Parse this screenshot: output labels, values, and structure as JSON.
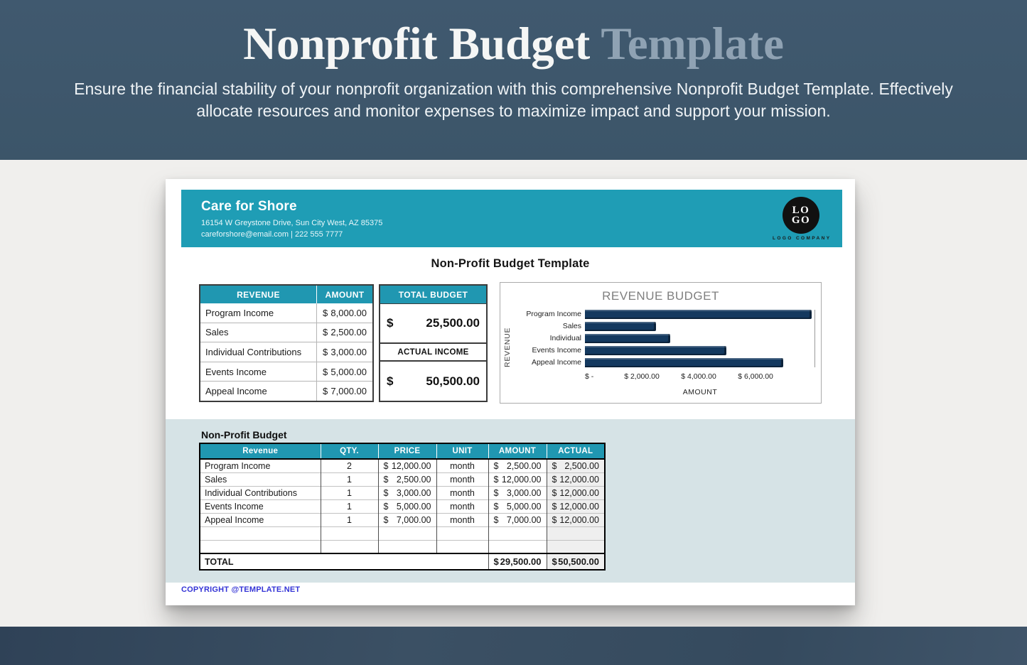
{
  "colors": {
    "teal": "#1F9DB5",
    "teal_header": "#2097B1",
    "navy_bar": "#14395F",
    "hero_bg": "#3E586E",
    "footer_bg": "#394E62",
    "section_bg": "#D6E3E6",
    "copyright_blue": "#3434D6",
    "accent_title": "#8FA2B3"
  },
  "hero": {
    "title_main": "Nonprofit Budget",
    "title_accent": "Template",
    "subtitle": "Ensure the financial stability of your nonprofit organization with this comprehensive Nonprofit Budget Template. Effectively allocate resources and monitor expenses to maximize impact and support your mission."
  },
  "document": {
    "currency": "$",
    "company": {
      "name": "Care for Shore",
      "address": "16154 W Greystone Drive, Sun City West, AZ 85375",
      "contact": "careforshore@email.com | 222 555 7777"
    },
    "logo": {
      "line1": "LO",
      "line2": "GO",
      "caption": "LOGO COMPANY"
    },
    "doc_title": "Non-Profit Budget Template",
    "revenue_table": {
      "headers": {
        "revenue": "REVENUE",
        "amount": "AMOUNT",
        "total_budget": "TOTAL BUDGET"
      },
      "rows": [
        {
          "label": "Program Income",
          "amount": "8,000.00"
        },
        {
          "label": "Sales",
          "amount": "2,500.00"
        },
        {
          "label": "Individual Contributions",
          "amount": "3,000.00"
        },
        {
          "label": "Events Income",
          "amount": "5,000.00"
        },
        {
          "label": "Appeal Income",
          "amount": "7,000.00"
        }
      ],
      "total_budget_value": "25,500.00",
      "actual_income_label": "ACTUAL INCOME",
      "actual_income_value": "50,500.00"
    },
    "budget_section": {
      "label": "Non-Profit Budget",
      "headers": {
        "revenue": "Revenue",
        "qty": "QTY.",
        "price": "PRICE",
        "unit": "UNIT",
        "amount": "AMOUNT",
        "actual": "ACTUAL"
      },
      "rows": [
        {
          "revenue": "Program Income",
          "qty": "2",
          "price": "12,000.00",
          "unit": "month",
          "amount": "2,500.00",
          "actual": "2,500.00"
        },
        {
          "revenue": "Sales",
          "qty": "1",
          "price": "2,500.00",
          "unit": "month",
          "amount": "12,000.00",
          "actual": "12,000.00"
        },
        {
          "revenue": "Individual Contributions",
          "qty": "1",
          "price": "3,000.00",
          "unit": "month",
          "amount": "3,000.00",
          "actual": "12,000.00"
        },
        {
          "revenue": "Events Income",
          "qty": "1",
          "price": "5,000.00",
          "unit": "month",
          "amount": "5,000.00",
          "actual": "12,000.00"
        },
        {
          "revenue": "Appeal Income",
          "qty": "1",
          "price": "7,000.00",
          "unit": "month",
          "amount": "7,000.00",
          "actual": "12,000.00"
        }
      ],
      "total": {
        "label": "TOTAL",
        "amount": "29,500.00",
        "actual": "50,500.00"
      }
    },
    "copyright": "COPYRIGHT @TEMPLATE.NET"
  },
  "chart_data": {
    "type": "bar",
    "orientation": "horizontal",
    "title": "REVENUE BUDGET",
    "categories": [
      "Program Income",
      "Sales",
      "Individual",
      "Events Income",
      "Appeal Income"
    ],
    "values": [
      8000,
      2500,
      3000,
      5000,
      7000
    ],
    "xlabel": "AMOUNT",
    "ylabel": "REVENUE",
    "xlim": [
      0,
      8100
    ],
    "xticks": [
      0,
      2000,
      4000,
      6000
    ],
    "tick_labels": [
      "$ -",
      "$ 2,000.00",
      "$ 4,000.00",
      "$ 6,000.00"
    ],
    "bar_color": "#14395F",
    "grid": false,
    "legend": false
  }
}
